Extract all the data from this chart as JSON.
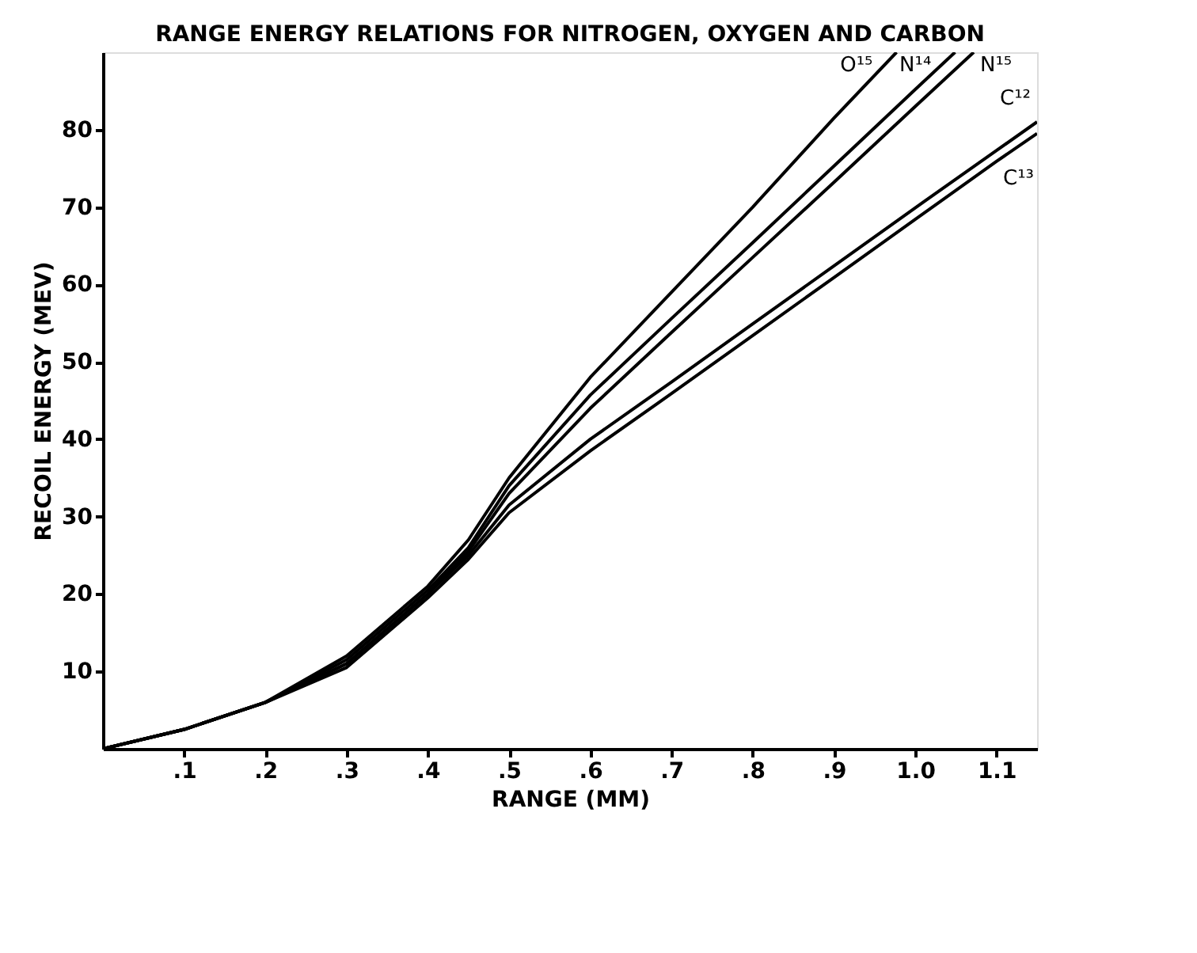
{
  "chart_data": {
    "type": "line",
    "title": "RANGE ENERGY RELATIONS FOR NITROGEN, OXYGEN AND CARBON",
    "xlabel": "RANGE (MM)",
    "ylabel": "RECOIL ENERGY (MEV)",
    "xlim": [
      0,
      1.15
    ],
    "ylim": [
      0,
      90
    ],
    "xticks": [
      {
        "value": 0.1,
        "label": ".1"
      },
      {
        "value": 0.2,
        "label": ".2"
      },
      {
        "value": 0.3,
        "label": ".3"
      },
      {
        "value": 0.4,
        "label": ".4"
      },
      {
        "value": 0.5,
        "label": ".5"
      },
      {
        "value": 0.6,
        "label": ".6"
      },
      {
        "value": 0.7,
        "label": ".7"
      },
      {
        "value": 0.8,
        "label": ".8"
      },
      {
        "value": 0.9,
        "label": ".9"
      },
      {
        "value": 1.0,
        "label": "1.0"
      },
      {
        "value": 1.1,
        "label": "1.1"
      }
    ],
    "yticks": [
      10,
      20,
      30,
      40,
      50,
      60,
      70,
      80
    ],
    "grid": false,
    "legend": false,
    "marker": "none",
    "line_style": "solid",
    "series": [
      {
        "name": "O¹⁵",
        "color": "#000000",
        "x": [
          0,
          0.1,
          0.2,
          0.3,
          0.4,
          0.45,
          0.5,
          0.6,
          0.7,
          0.8,
          0.9,
          0.977
        ],
        "values": [
          0,
          2.5,
          6,
          12,
          21,
          27,
          35,
          48,
          59,
          70,
          81.5,
          90
        ]
      },
      {
        "name": "N¹⁴",
        "color": "#000000",
        "x": [
          0,
          0.1,
          0.2,
          0.3,
          0.4,
          0.45,
          0.5,
          0.6,
          0.7,
          0.8,
          0.9,
          1.0,
          1.049
        ],
        "values": [
          0,
          2.5,
          6,
          11.5,
          20.5,
          26,
          34,
          45.7,
          55.6,
          65.4,
          75.3,
          85.2,
          90
        ]
      },
      {
        "name": "N¹⁵",
        "color": "#000000",
        "x": [
          0,
          0.1,
          0.2,
          0.3,
          0.4,
          0.45,
          0.5,
          0.6,
          0.7,
          0.8,
          0.9,
          1.0,
          1.072
        ],
        "values": [
          0,
          2.5,
          6,
          11,
          20,
          25.5,
          33,
          44,
          53.8,
          63.5,
          73.2,
          83,
          90
        ]
      },
      {
        "name": "C¹²",
        "color": "#000000",
        "x": [
          0,
          0.1,
          0.2,
          0.3,
          0.4,
          0.45,
          0.5,
          0.6,
          0.7,
          0.8,
          0.9,
          1.0,
          1.1,
          1.15
        ],
        "values": [
          0,
          2.5,
          6,
          11,
          20,
          25,
          31.5,
          40,
          47.4,
          54.9,
          62.4,
          69.9,
          77.3,
          81
        ]
      },
      {
        "name": "C¹³",
        "color": "#000000",
        "x": [
          0,
          0.1,
          0.2,
          0.3,
          0.4,
          0.45,
          0.5,
          0.6,
          0.7,
          0.8,
          0.9,
          1.0,
          1.1,
          1.15
        ],
        "values": [
          0,
          2.5,
          6,
          10.5,
          19.5,
          24.5,
          30.5,
          38.5,
          45.9,
          53.4,
          60.9,
          68.4,
          75.9,
          79.5
        ]
      }
    ]
  }
}
